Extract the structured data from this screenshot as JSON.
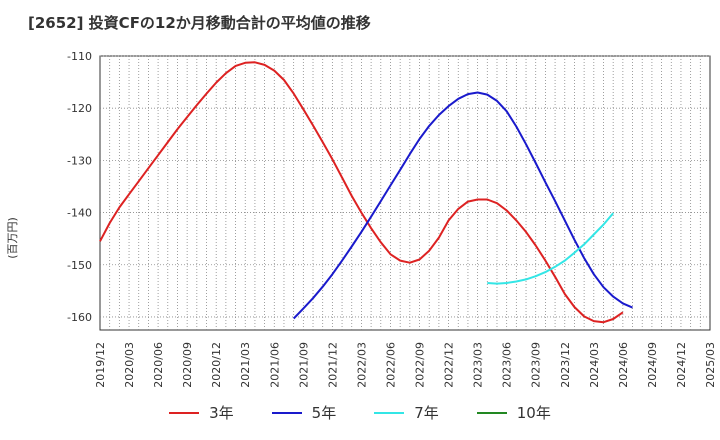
{
  "title": "[2652]  投資CFの12か月移動合計の平均値の推移",
  "chart_data": {
    "type": "line",
    "title": "[2652]  投資CFの12か月移動合計の平均値の推移",
    "xlabel": "",
    "ylabel": "(百万円)",
    "ylim": [
      -162.5,
      -110
    ],
    "yticks": [
      -110,
      -120,
      -130,
      -140,
      -150,
      -160
    ],
    "ytick_labels": [
      "-110",
      "-120",
      "-130",
      "-140",
      "-150",
      "-160"
    ],
    "xticks": [
      "2019/12",
      "2020/03",
      "2020/06",
      "2020/09",
      "2020/12",
      "2021/03",
      "2021/06",
      "2021/09",
      "2021/12",
      "2022/03",
      "2022/06",
      "2022/09",
      "2022/12",
      "2023/03",
      "2023/06",
      "2023/09",
      "2023/12",
      "2024/03",
      "2024/06",
      "2024/09",
      "2024/12",
      "2025/03"
    ],
    "grid": true,
    "legend_position": "bottom",
    "series": [
      {
        "name": "3年",
        "color": "#dd2222",
        "start_index": 0,
        "values": [
          -145.5,
          -142,
          -139,
          -136.5,
          -134,
          -131.5,
          -129,
          -126.5,
          -124,
          -121.7,
          -119.4,
          -117.2,
          -115.1,
          -113.3,
          -111.9,
          -111.3,
          -111.2,
          -111.7,
          -112.8,
          -114.6,
          -117.2,
          -120.2,
          -123.3,
          -126.5,
          -129.8,
          -133.3,
          -136.8,
          -140.0,
          -143.0,
          -145.7,
          -148.0,
          -149.2,
          -149.6,
          -149.0,
          -147.3,
          -144.8,
          -141.5,
          -139.3,
          -137.9,
          -137.5,
          -137.5,
          -138.2,
          -139.6,
          -141.5,
          -143.7,
          -146.3,
          -149.2,
          -152.3,
          -155.6,
          -158.1,
          -159.9,
          -160.8,
          -161.0,
          -160.4,
          -159.1
        ]
      },
      {
        "name": "5年",
        "color": "#1a1acc",
        "start_index": 20,
        "values": [
          -160.3,
          -158.4,
          -156.4,
          -154.2,
          -151.8,
          -149.2,
          -146.5,
          -143.7,
          -140.8,
          -137.8,
          -134.8,
          -131.8,
          -128.8,
          -125.9,
          -123.4,
          -121.3,
          -119.6,
          -118.2,
          -117.3,
          -117.0,
          -117.4,
          -118.6,
          -120.6,
          -123.5,
          -126.9,
          -130.5,
          -134.2,
          -137.8,
          -141.5,
          -145.2,
          -148.7,
          -151.8,
          -154.3,
          -156.1,
          -157.4,
          -158.2
        ]
      },
      {
        "name": "7年",
        "color": "#33e6e6",
        "start_index": 40,
        "values": [
          -153.5,
          -153.6,
          -153.5,
          -153.2,
          -152.8,
          -152.2,
          -151.4,
          -150.4,
          -149.2,
          -147.7,
          -146.1,
          -144.2,
          -142.3,
          -140.1
        ]
      },
      {
        "name": "10年",
        "color": "#228822",
        "start_index": 0,
        "values": []
      }
    ]
  }
}
